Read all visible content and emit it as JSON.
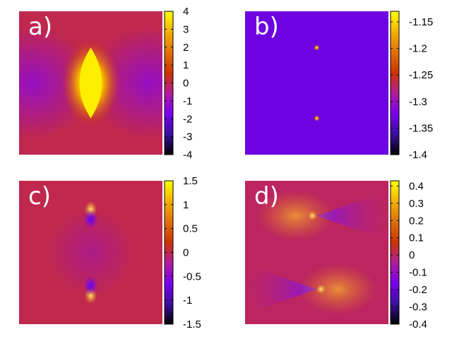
{
  "colormap": [
    "#000000",
    "#3b0f9e",
    "#7a00f0",
    "#b31c9a",
    "#cc3300",
    "#e0700a",
    "#f5b000",
    "#ffff00"
  ],
  "chart_data": [
    {
      "type": "heatmap",
      "label": "a)",
      "colorbar": {
        "min": -4,
        "max": 4,
        "ticks": [
          "4",
          "3",
          "2",
          "1",
          "0",
          "-1",
          "-2",
          "-3",
          "-4"
        ]
      },
      "features": {
        "kind": "lens",
        "background": 0,
        "side_value": -1.2,
        "peak_value": 4
      }
    },
    {
      "type": "heatmap",
      "label": "b)",
      "colorbar": {
        "min": -1.4,
        "max": -1.13,
        "ticks": [
          "-1.15",
          "-1.2",
          "-1.25",
          "-1.3",
          "-1.35",
          "-1.4"
        ]
      },
      "features": {
        "kind": "points",
        "background": -1.33,
        "peak_value": -1.2
      }
    },
    {
      "type": "heatmap",
      "label": "c)",
      "colorbar": {
        "min": -1.5,
        "max": 1.5,
        "ticks": [
          "1.5",
          "1",
          "0.5",
          "0",
          "-0.5",
          "-1",
          "-1.5"
        ]
      },
      "features": {
        "kind": "dipole-vertical",
        "background": 0
      }
    },
    {
      "type": "heatmap",
      "label": "d)",
      "colorbar": {
        "min": -0.4,
        "max": 0.43,
        "ticks": [
          "0.4",
          "0.3",
          "0.2",
          "0.1",
          "0",
          "-0.1",
          "-0.2",
          "-0.3",
          "-0.4"
        ]
      },
      "features": {
        "kind": "dipole-horizontal",
        "background": 0
      }
    }
  ]
}
